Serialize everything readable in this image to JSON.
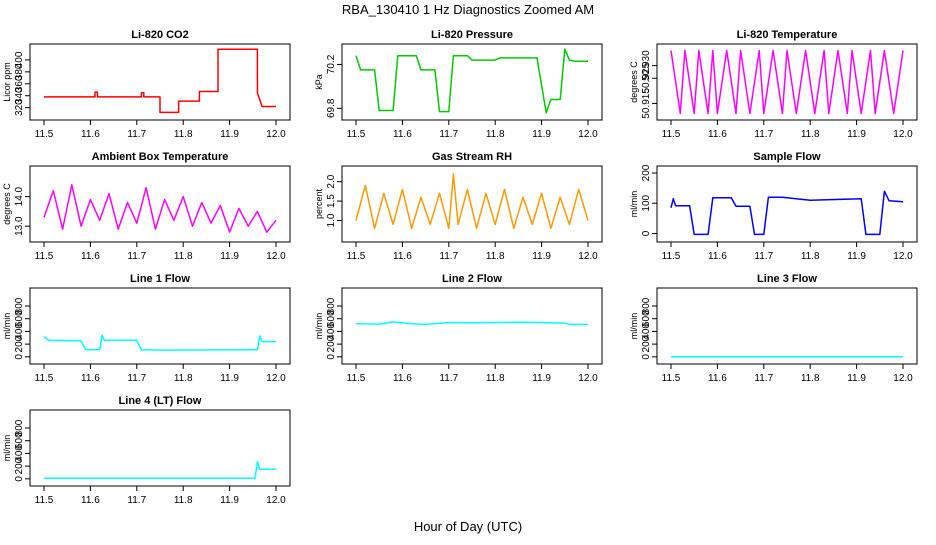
{
  "title": "RBA_130410  1 Hz Diagnostics Zoomed AM",
  "xlabel": "Hour of Day (UTC)",
  "x_ticks": [
    "11.5",
    "11.6",
    "11.7",
    "11.8",
    "11.9",
    "12.0"
  ],
  "chart_data": [
    {
      "type": "line",
      "title": "Li-820 CO2",
      "ylabel": "Licor ppm",
      "color": "#ff0000",
      "xlim": [
        11.5,
        12.0
      ],
      "ylim": [
        306,
        420
      ],
      "yticks": [
        "320",
        "340",
        "360",
        "380",
        "400"
      ],
      "series": [
        {
          "x": [
            11.5,
            11.61,
            11.61,
            11.615,
            11.615,
            11.71,
            11.71,
            11.715,
            11.715,
            11.75,
            11.75,
            11.79,
            11.79,
            11.835,
            11.835,
            11.875,
            11.875,
            11.96,
            11.96,
            11.97,
            12.0
          ],
          "y": [
            338,
            338,
            346,
            346,
            338,
            338,
            345,
            345,
            338,
            338,
            312,
            312,
            331,
            331,
            347,
            347,
            418,
            418,
            345,
            322,
            322
          ]
        }
      ]
    },
    {
      "type": "line",
      "title": "Li-820 Pressure",
      "ylabel": "kPa",
      "color": "#00cc00",
      "xlim": [
        11.5,
        12.0
      ],
      "ylim": [
        69.73,
        70.35
      ],
      "yticks": [
        "69.8",
        "70.2"
      ],
      "series": [
        {
          "x": [
            11.5,
            11.51,
            11.54,
            11.55,
            11.58,
            11.59,
            11.63,
            11.64,
            11.67,
            11.68,
            11.7,
            11.71,
            11.74,
            11.75,
            11.8,
            11.81,
            11.89,
            11.91,
            11.92,
            11.94,
            11.95,
            11.96,
            11.97,
            12.0
          ],
          "y": [
            70.28,
            70.15,
            70.15,
            69.78,
            69.78,
            70.28,
            70.28,
            70.15,
            70.15,
            69.77,
            69.77,
            70.28,
            70.28,
            70.24,
            70.24,
            70.26,
            70.26,
            69.76,
            69.88,
            69.88,
            70.34,
            70.24,
            70.23,
            70.23
          ]
        }
      ]
    },
    {
      "type": "line",
      "title": "Li-820 Temperature",
      "ylabel": "degrees C",
      "color": "#ff00ff",
      "xlim": [
        11.5,
        12.0
      ],
      "ylim": [
        50.91,
        50.937
      ],
      "yticks": [
        "50.915",
        "50.925",
        "50.930"
      ],
      "series": [
        {
          "x": [
            11.5,
            11.52,
            11.53,
            11.55,
            11.56,
            11.58,
            11.59,
            11.6,
            11.62,
            11.64,
            11.65,
            11.67,
            11.69,
            11.7,
            11.72,
            11.74,
            11.75,
            11.77,
            11.79,
            11.81,
            11.83,
            11.84,
            11.86,
            11.88,
            11.89,
            11.91,
            11.93,
            11.94,
            11.96,
            11.98,
            12.0
          ],
          "y": [
            50.936,
            50.911,
            50.936,
            50.911,
            50.936,
            50.911,
            50.936,
            50.911,
            50.936,
            50.911,
            50.936,
            50.911,
            50.936,
            50.911,
            50.936,
            50.911,
            50.936,
            50.911,
            50.936,
            50.911,
            50.936,
            50.911,
            50.936,
            50.911,
            50.936,
            50.911,
            50.936,
            50.911,
            50.936,
            50.911,
            50.936
          ]
        }
      ]
    },
    {
      "type": "line",
      "title": "Ambient Box Temperature",
      "ylabel": "degrees C",
      "color": "#ff00ff",
      "xlim": [
        11.5,
        12.0
      ],
      "ylim": [
        12.6,
        14.9
      ],
      "yticks": [
        "13.0",
        "14.0"
      ],
      "series": [
        {
          "x": [
            11.5,
            11.52,
            11.54,
            11.56,
            11.58,
            11.6,
            11.62,
            11.64,
            11.66,
            11.68,
            11.7,
            11.72,
            11.74,
            11.76,
            11.78,
            11.8,
            11.82,
            11.84,
            11.86,
            11.88,
            11.9,
            11.92,
            11.94,
            11.96,
            11.98,
            12.0
          ],
          "y": [
            13.3,
            14.2,
            12.9,
            14.4,
            13.0,
            13.9,
            13.2,
            14.1,
            12.9,
            13.8,
            13.1,
            14.3,
            12.9,
            13.9,
            13.2,
            14.0,
            13.0,
            13.8,
            13.1,
            13.7,
            12.8,
            13.6,
            13.0,
            13.5,
            12.8,
            13.2
          ]
        }
      ]
    },
    {
      "type": "line",
      "title": "Gas Stream RH",
      "ylabel": "percent",
      "color": "#ff9900",
      "xlim": [
        11.5,
        12.0
      ],
      "ylim": [
        0.55,
        2.3
      ],
      "yticks": [
        "1.0",
        "1.5",
        "2.0"
      ],
      "series": [
        {
          "x": [
            11.5,
            11.52,
            11.54,
            11.56,
            11.58,
            11.6,
            11.62,
            11.64,
            11.66,
            11.68,
            11.7,
            11.71,
            11.72,
            11.74,
            11.76,
            11.78,
            11.8,
            11.82,
            11.84,
            11.86,
            11.88,
            11.9,
            11.92,
            11.94,
            11.96,
            11.98,
            12.0
          ],
          "y": [
            1.0,
            1.9,
            0.8,
            1.7,
            0.9,
            1.8,
            0.8,
            1.6,
            0.9,
            1.7,
            0.8,
            2.2,
            0.9,
            1.8,
            0.8,
            1.7,
            0.9,
            1.8,
            0.8,
            1.6,
            0.9,
            1.7,
            0.8,
            1.6,
            0.9,
            1.8,
            1.0
          ]
        }
      ]
    },
    {
      "type": "line",
      "title": "Sample Flow",
      "ylabel": "ml/min",
      "color": "#0000ff",
      "xlim": [
        11.5,
        12.0
      ],
      "ylim": [
        -15,
        210
      ],
      "yticks": [
        "0",
        "100",
        "200"
      ],
      "series": [
        {
          "x": [
            11.5,
            11.505,
            11.51,
            11.54,
            11.55,
            11.58,
            11.59,
            11.63,
            11.64,
            11.67,
            11.68,
            11.7,
            11.71,
            11.74,
            11.8,
            11.91,
            11.92,
            11.95,
            11.96,
            11.97,
            12.0
          ],
          "y": [
            85,
            115,
            92,
            92,
            -3,
            -3,
            118,
            118,
            90,
            90,
            -3,
            -3,
            120,
            120,
            110,
            115,
            -3,
            -3,
            140,
            108,
            105
          ]
        }
      ]
    },
    {
      "type": "line",
      "title": "Line 1 Flow",
      "ylabel": "ml/min",
      "color": "#00ffff",
      "xlim": [
        11.5,
        12.0
      ],
      "ylim": [
        -50,
        1020
      ],
      "yticks": [
        "0",
        "200",
        "400",
        "600",
        "800"
      ],
      "series": [
        {
          "x": [
            11.5,
            11.51,
            11.58,
            11.59,
            11.62,
            11.625,
            11.63,
            11.7,
            11.71,
            11.75,
            11.96,
            11.965,
            11.97,
            12.0
          ],
          "y": [
            320,
            260,
            250,
            110,
            110,
            340,
            260,
            260,
            110,
            105,
            110,
            330,
            240,
            240
          ]
        }
      ]
    },
    {
      "type": "line",
      "title": "Line 2 Flow",
      "ylabel": "ml/min",
      "color": "#00ffff",
      "xlim": [
        11.5,
        12.0
      ],
      "ylim": [
        -50,
        1020
      ],
      "yticks": [
        "0",
        "200",
        "400",
        "600",
        "800"
      ],
      "series": [
        {
          "x": [
            11.5,
            11.55,
            11.58,
            11.62,
            11.65,
            11.7,
            11.75,
            11.8,
            11.85,
            11.9,
            11.95,
            11.96,
            12.0
          ],
          "y": [
            520,
            515,
            550,
            520,
            510,
            540,
            535,
            540,
            545,
            540,
            530,
            510,
            510
          ]
        }
      ]
    },
    {
      "type": "line",
      "title": "Line 3 Flow",
      "ylabel": "ml/min",
      "color": "#00ffff",
      "xlim": [
        11.5,
        12.0
      ],
      "ylim": [
        -50,
        1020
      ],
      "yticks": [
        "0",
        "200",
        "400",
        "600",
        "800"
      ],
      "series": [
        {
          "x": [
            11.5,
            12.0
          ],
          "y": [
            0,
            0
          ]
        }
      ]
    },
    {
      "type": "line",
      "title": "Line 4 (LT) Flow",
      "ylabel": "ml/min",
      "color": "#00ffff",
      "xlim": [
        11.5,
        12.0
      ],
      "ylim": [
        -50,
        1020
      ],
      "yticks": [
        "0",
        "200",
        "400",
        "600",
        "800"
      ],
      "series": [
        {
          "x": [
            11.5,
            11.955,
            11.96,
            11.965,
            11.97,
            12.0
          ],
          "y": [
            10,
            10,
            270,
            150,
            150,
            150
          ]
        }
      ]
    }
  ]
}
